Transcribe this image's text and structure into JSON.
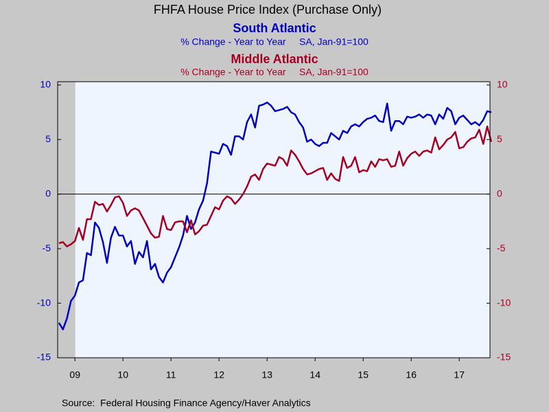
{
  "chart_data": {
    "type": "line",
    "title": "FHFA House Price Index (Purchase Only)",
    "source": "Source:  Federal Housing Finance Agency/Haver Analytics",
    "x": [
      2009.167,
      2009.25,
      2009.333,
      2009.417,
      2009.5,
      2009.583,
      2009.667,
      2009.75,
      2009.833,
      2009.917,
      2010,
      2010.083,
      2010.167,
      2010.25,
      2010.333,
      2010.417,
      2010.5,
      2010.583,
      2010.667,
      2010.75,
      2010.833,
      2010.917,
      2011,
      2011.083,
      2011.167,
      2011.25,
      2011.333,
      2011.417,
      2011.5,
      2011.583,
      2011.667,
      2011.75,
      2011.833,
      2011.917,
      2012,
      2012.083,
      2012.167,
      2012.25,
      2012.333,
      2012.417,
      2012.5,
      2012.583,
      2012.667,
      2012.75,
      2012.833,
      2012.917,
      2013,
      2013.083,
      2013.167,
      2013.25,
      2013.333,
      2013.417,
      2013.5,
      2013.583,
      2013.667,
      2013.75,
      2013.833,
      2013.917,
      2014,
      2014.083,
      2014.167,
      2014.25,
      2014.333,
      2014.417,
      2014.5,
      2014.583,
      2014.667,
      2014.75,
      2014.833,
      2014.917,
      2015,
      2015.083,
      2015.167,
      2015.25,
      2015.333,
      2015.417,
      2015.5,
      2015.583,
      2015.667,
      2015.75,
      2015.833,
      2015.917,
      2016,
      2016.083,
      2016.167,
      2016.25,
      2016.333,
      2016.417,
      2016.5,
      2016.583,
      2016.667,
      2016.75,
      2016.833,
      2016.917,
      2017,
      2017.083,
      2017.167,
      2017.25,
      2017.333,
      2017.417,
      2017.5,
      2017.583,
      2017.667,
      2017.75,
      2017.833,
      2017.917,
      2018,
      2018.083,
      2018.167
    ],
    "series": [
      {
        "name": "South Atlantic",
        "subtitle": "% Change - Year to Year     SA, Jan-91=100",
        "color": "#0000c0",
        "values": [
          -11.8,
          -12.4,
          -11.4,
          -9.8,
          -9.3,
          -8.1,
          -7.9,
          -5.4,
          -5.6,
          -2.6,
          -3.1,
          -4.4,
          -6.3,
          -4.0,
          -3.0,
          -3.8,
          -3.8,
          -4.8,
          -4.3,
          -6.4,
          -5.3,
          -5.8,
          -4.3,
          -6.9,
          -6.4,
          -7.6,
          -8.1,
          -7.2,
          -6.7,
          -5.8,
          -4.9,
          -3.8,
          -2.0,
          -3.2,
          -2.6,
          -1.4,
          -0.6,
          1.0,
          3.9,
          3.8,
          3.7,
          4.6,
          4.4,
          3.6,
          5.3,
          5.3,
          5.0,
          6.6,
          7.3,
          6.1,
          8.1,
          8.2,
          8.4,
          8.1,
          7.6,
          7.7,
          7.8,
          8.0,
          7.5,
          7.3,
          6.6,
          6.1,
          4.8,
          5.0,
          4.6,
          4.4,
          4.7,
          4.7,
          5.6,
          5.3,
          5.0,
          5.8,
          5.6,
          6.2,
          6.4,
          6.2,
          6.6,
          6.9,
          7.0,
          7.2,
          6.7,
          6.6,
          8.3,
          5.8,
          6.7,
          6.7,
          6.4,
          7.1,
          7.0,
          7.1,
          7.3,
          7.0,
          7.3,
          7.2,
          6.4,
          7.3,
          6.9,
          7.9,
          7.6,
          6.4,
          7.0,
          7.2,
          6.8,
          6.4,
          6.6,
          6.3,
          6.8,
          7.6,
          7.5
        ]
      },
      {
        "name": "Middle Atlantic",
        "subtitle": "% Change - Year to Year     SA, Jan-91=100",
        "color": "#a50021",
        "axis": "y2",
        "values": [
          -4.5,
          -4.4,
          -4.8,
          -4.6,
          -4.3,
          -3.1,
          -4.2,
          -2.3,
          -2.3,
          -0.7,
          -1.0,
          -0.9,
          -1.6,
          -1.0,
          -0.3,
          -0.2,
          -0.8,
          -2.0,
          -1.5,
          -1.3,
          -1.5,
          -2.2,
          -2.9,
          -3.6,
          -4.0,
          -3.9,
          -2.0,
          -3.2,
          -3.3,
          -2.6,
          -2.5,
          -2.5,
          -3.5,
          -2.4,
          -3.7,
          -3.4,
          -2.9,
          -2.8,
          -2.0,
          -1.2,
          -1.4,
          -0.6,
          -0.2,
          -0.4,
          -0.9,
          -0.5,
          0.0,
          0.7,
          1.6,
          1.8,
          1.3,
          2.3,
          2.8,
          2.7,
          2.6,
          3.4,
          3.2,
          2.6,
          4.0,
          3.6,
          3.0,
          2.3,
          1.8,
          1.9,
          2.1,
          2.3,
          2.4,
          1.3,
          1.9,
          1.4,
          1.2,
          3.4,
          2.4,
          2.6,
          3.4,
          2.0,
          2.2,
          2.1,
          3.0,
          2.5,
          3.2,
          3.1,
          3.2,
          2.5,
          2.6,
          3.9,
          2.6,
          3.3,
          3.7,
          3.9,
          3.5,
          3.9,
          4.0,
          3.8,
          5.2,
          4.1,
          4.5,
          5.0,
          5.2,
          5.7,
          4.2,
          4.3,
          4.8,
          5.1,
          5.2,
          5.9,
          4.6,
          6.2,
          4.8
        ]
      }
    ],
    "xlim": [
      2009.14,
      2018.14
    ],
    "xticks": [
      {
        "value": 2009.5,
        "label": "09"
      },
      {
        "value": 2010.5,
        "label": "10"
      },
      {
        "value": 2011.5,
        "label": "11"
      },
      {
        "value": 2012.5,
        "label": "12"
      },
      {
        "value": 2013.5,
        "label": "13"
      },
      {
        "value": 2014.5,
        "label": "14"
      },
      {
        "value": 2015.5,
        "label": "15"
      },
      {
        "value": 2016.5,
        "label": "16"
      },
      {
        "value": 2017.5,
        "label": "17"
      }
    ],
    "ylim": [
      -15,
      10.3
    ],
    "yticks": [
      -15,
      -10,
      -5,
      0,
      5,
      10
    ],
    "y2lim": [
      -15,
      10.3
    ],
    "y2ticks": [
      -15,
      -10,
      -5,
      0,
      5,
      10
    ],
    "recession": {
      "start": 2007.917,
      "end": 2009.5,
      "color": "#c8c8c8"
    },
    "zero_line": true
  }
}
